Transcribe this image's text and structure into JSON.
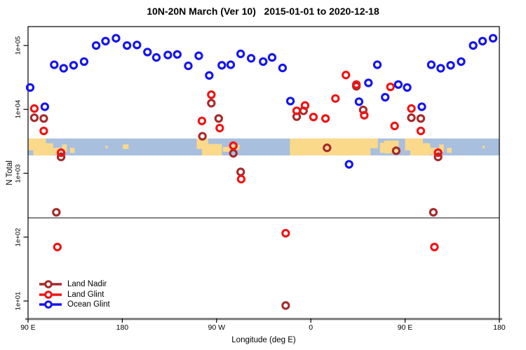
{
  "title": "10N-20N March (Ver 10)   2015-01-01 to 2020-12-18",
  "axes": {
    "y_label": "N Total",
    "x_label": "Longitude (deg E)"
  },
  "legend": [
    {
      "label": "Land Nadir",
      "color": "#A52A2A"
    },
    {
      "label": "Land Glint",
      "color": "#F01414"
    },
    {
      "label": "Ocean Glint",
      "color": "#1414F0"
    }
  ],
  "chart_data": {
    "type": "scatter",
    "title": "10N-20N March (Ver 10)   2015-01-01 to 2020-12-18",
    "xlabel": "Longitude (deg E)",
    "ylabel": "N Total",
    "x_axis": {
      "note": "longitude axis wraps: spans 90E eastward through 180, 90W, 0, back to 180; points with lon 90E-180E are plotted twice",
      "range_display_deg": [
        90,
        540
      ],
      "ticks": [
        {
          "label": "90 E",
          "lon_display": 90
        },
        {
          "label": "180",
          "lon_display": 180
        },
        {
          "label": "90 W",
          "lon_display": 270
        },
        {
          "label": "0",
          "lon_display": 360
        },
        {
          "label": "90 E",
          "lon_display": 450
        },
        {
          "label": "180",
          "lon_display": 540
        }
      ]
    },
    "y_axis": {
      "scale": "log10",
      "ticks": [
        {
          "label": "1e+05",
          "value": 100000
        },
        {
          "label": "1e+04",
          "value": 10000
        },
        {
          "label": "1e+03",
          "value": 1000
        },
        {
          "label": "1e+02",
          "value": 100
        },
        {
          "label": "1e+01",
          "value": 10
        }
      ],
      "ylim": [
        5.4,
        200000
      ]
    },
    "grid": "off",
    "legend_position": "bottom-left",
    "threshold_line_value": 200,
    "map_band": {
      "description": "world map strip for the 10N-20N latitude band drawn across the plot",
      "value_range": [
        1900,
        3500
      ],
      "ocean_color": "#A8BFDE",
      "land_color": "#FAD98B",
      "land_patches_display_deg": [
        {
          "d": [
            90,
            107
          ],
          "f": [
            0.0,
            0.7
          ]
        },
        {
          "d": [
            95,
            114
          ],
          "f": [
            0.28,
            1.0
          ]
        },
        {
          "d": [
            100,
            107
          ],
          "f": [
            0.0,
            1.0
          ]
        },
        {
          "d": [
            114,
            121
          ],
          "f": [
            0.55,
            0.95
          ]
        },
        {
          "d": [
            122.5,
            127
          ],
          "f": [
            0.35,
            0.8
          ]
        },
        {
          "d": [
            130,
            134.5
          ],
          "f": [
            0.55,
            0.85
          ]
        },
        {
          "d": [
            164,
            166
          ],
          "f": [
            0.42,
            0.58
          ]
        },
        {
          "d": [
            180.5,
            186
          ],
          "f": [
            0.35,
            0.62
          ]
        },
        {
          "d": [
            251,
            262
          ],
          "f": [
            0.0,
            0.62
          ]
        },
        {
          "d": [
            256,
            275
          ],
          "f": [
            0.32,
            1.0
          ]
        },
        {
          "d": [
            276,
            283
          ],
          "f": [
            0.5,
            0.78
          ]
        },
        {
          "d": [
            284,
            292
          ],
          "f": [
            0.38,
            0.66
          ]
        },
        {
          "d": [
            340,
            417
          ],
          "f": [
            0.0,
            1.0
          ]
        },
        {
          "d": [
            417,
            424
          ],
          "f": [
            0.0,
            0.58
          ]
        },
        {
          "d": [
            426,
            430
          ],
          "f": [
            0.25,
            0.85
          ]
        },
        {
          "d": [
            430,
            444
          ],
          "f": [
            0.12,
            0.88
          ]
        }
      ]
    },
    "series": [
      {
        "name": "Land Nadir",
        "color": "#A52A2A",
        "points": [
          {
            "lon": 96,
            "n": 7400
          },
          {
            "lon": 105,
            "n": 7200
          },
          {
            "lon": 121.5,
            "n": 1800
          },
          {
            "lon": 117,
            "n": 245
          },
          {
            "lon": -103.5,
            "n": 3800
          },
          {
            "lon": -95,
            "n": 12500
          },
          {
            "lon": -88,
            "n": 7200
          },
          {
            "lon": -74,
            "n": 2050
          },
          {
            "lon": -67,
            "n": 1050
          },
          {
            "lon": -24,
            "n": 8.5
          },
          {
            "lon": -13.5,
            "n": 7700
          },
          {
            "lon": -7,
            "n": 9500
          },
          {
            "lon": 15.5,
            "n": 2500
          },
          {
            "lon": 43.5,
            "n": 23000
          },
          {
            "lon": 50,
            "n": 9800
          },
          {
            "lon": 81.5,
            "n": 2250
          }
        ]
      },
      {
        "name": "Land Glint",
        "color": "#F01414",
        "points": [
          {
            "lon": 96,
            "n": 10300
          },
          {
            "lon": 105,
            "n": 4600
          },
          {
            "lon": 121.5,
            "n": 2100
          },
          {
            "lon": 118,
            "n": 70
          },
          {
            "lon": -104,
            "n": 6600
          },
          {
            "lon": -95,
            "n": 17000
          },
          {
            "lon": -87,
            "n": 5100
          },
          {
            "lon": -74,
            "n": 2700
          },
          {
            "lon": -66.5,
            "n": 810
          },
          {
            "lon": -24,
            "n": 115
          },
          {
            "lon": -13.5,
            "n": 9500
          },
          {
            "lon": -5.5,
            "n": 11500
          },
          {
            "lon": 2.5,
            "n": 7600
          },
          {
            "lon": 14,
            "n": 7200
          },
          {
            "lon": 23.5,
            "n": 14800
          },
          {
            "lon": 33.5,
            "n": 34500
          },
          {
            "lon": 43.5,
            "n": 24500
          },
          {
            "lon": 51,
            "n": 8100
          },
          {
            "lon": 76,
            "n": 22500
          },
          {
            "lon": 80,
            "n": 5500
          }
        ]
      },
      {
        "name": "Ocean Glint",
        "color": "#1414F0",
        "points": [
          {
            "lon": 92,
            "n": 22000
          },
          {
            "lon": 106,
            "n": 11000
          },
          {
            "lon": 115,
            "n": 50000
          },
          {
            "lon": 124,
            "n": 44000
          },
          {
            "lon": 133.5,
            "n": 49000
          },
          {
            "lon": 143.5,
            "n": 56000
          },
          {
            "lon": 155,
            "n": 100000
          },
          {
            "lon": 164,
            "n": 117000
          },
          {
            "lon": 174,
            "n": 130000
          },
          {
            "lon": -175.5,
            "n": 100000
          },
          {
            "lon": -166,
            "n": 102000
          },
          {
            "lon": -156,
            "n": 79000
          },
          {
            "lon": -147.5,
            "n": 65000
          },
          {
            "lon": -136.5,
            "n": 71000
          },
          {
            "lon": -127.5,
            "n": 72500
          },
          {
            "lon": -117,
            "n": 48000
          },
          {
            "lon": -107,
            "n": 69000
          },
          {
            "lon": -97,
            "n": 34000
          },
          {
            "lon": -85,
            "n": 49000
          },
          {
            "lon": -76.5,
            "n": 50000
          },
          {
            "lon": -67,
            "n": 74000
          },
          {
            "lon": -57,
            "n": 63000
          },
          {
            "lon": -45.5,
            "n": 56000
          },
          {
            "lon": -37,
            "n": 65000
          },
          {
            "lon": -27,
            "n": 44500
          },
          {
            "lon": -19.5,
            "n": 13500
          },
          {
            "lon": 36.5,
            "n": 1380
          },
          {
            "lon": 46,
            "n": 13200
          },
          {
            "lon": 55,
            "n": 26000
          },
          {
            "lon": 63.5,
            "n": 50000
          },
          {
            "lon": 71,
            "n": 15500
          },
          {
            "lon": 83.5,
            "n": 24500
          }
        ]
      }
    ]
  }
}
